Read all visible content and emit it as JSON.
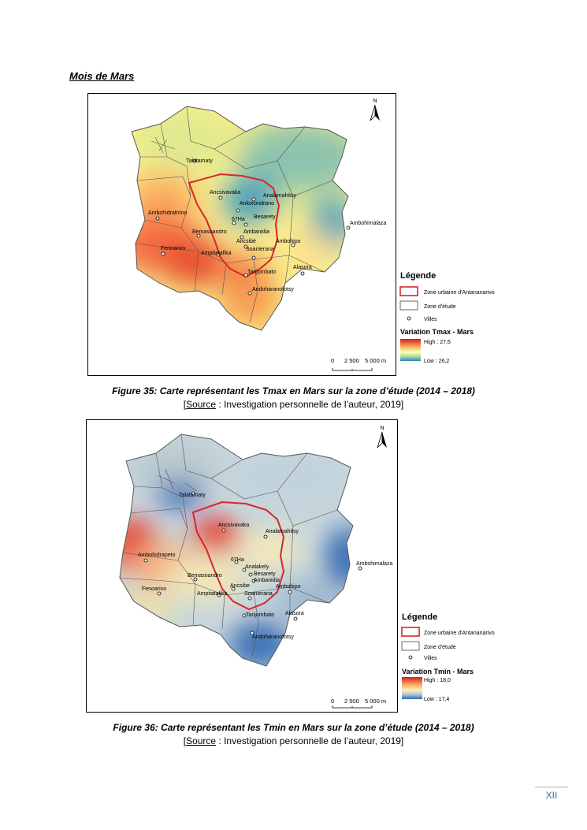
{
  "section_title": "Mois de Mars",
  "maps": [
    {
      "north_label": "N",
      "towns": [
        "Talatamaty",
        "Ancsivavaka",
        "Analamahitsy",
        "Ankorondrano",
        "67Ha",
        "Besarety",
        "Ambohidratrimo",
        "Ambanidia",
        "Ambohimalaza",
        "Bemasoandro",
        "Ancsibé",
        "Ambohipo",
        "Fenoarivo",
        "Ampitatafika",
        "Soanierana",
        "Tanjombato",
        "Alasora",
        "Andoharanofotsy"
      ],
      "legend": {
        "title": "Légende",
        "urban_zone": "Zone urbaine d'Antananarivo",
        "study_zone": "Zone d'étude",
        "towns": "Villes",
        "variation_title": "Variation Tmax - Mars",
        "high": "High : 27,6",
        "low": "Low : 26,2"
      },
      "scale": {
        "zero": "0",
        "mid": "2 500",
        "end": "5 000 m"
      }
    },
    {
      "north_label": "N",
      "towns": [
        "Talatamaty",
        "Ancsivavaka",
        "Analamahitsy",
        "Ambohidrapeto",
        "67Ha",
        "Analakely",
        "Besarety",
        "Ambohimalaza",
        "Bemasoandro",
        "Ambanidia",
        "Ancsibe",
        "Ambohipo",
        "Fenoarivo",
        "Ampitatafika",
        "Soanierana",
        "Tanjombato",
        "Alasora",
        "Andoharanofotsy"
      ],
      "legend": {
        "title": "Légende",
        "urban_zone": "Zone urbaine d'Antananarivo",
        "study_zone": "Zone d'étude",
        "towns": "Villes",
        "variation_title": "Variation Tmin - Mars",
        "high": "High : 18,0",
        "low": "Low : 17,4"
      },
      "scale": {
        "zero": "0",
        "mid": "2 500",
        "end": "5 000 m"
      }
    }
  ],
  "captions": [
    {
      "figure": "Figure 35: Carte représentant les Tmax en Mars sur la zone d’étude (2014 – 2018)",
      "source_label": "Source",
      "source_text": " : Investigation personnelle de l’auteur, 2019]"
    },
    {
      "figure": "Figure 36: Carte représentant les Tmin en Mars sur la zone d’étude (2014 – 2018)",
      "source_label": "Source",
      "source_text": " : Investigation personnelle de l’auteur, 2019]"
    }
  ],
  "page_number": "XII",
  "colors": {
    "urban_outline": "#d62728",
    "tmax_high": "#d7191c",
    "tmax_low": "#2b83ba",
    "tmin_high": "#d7191c",
    "tmin_low": "#2b6cb0"
  }
}
